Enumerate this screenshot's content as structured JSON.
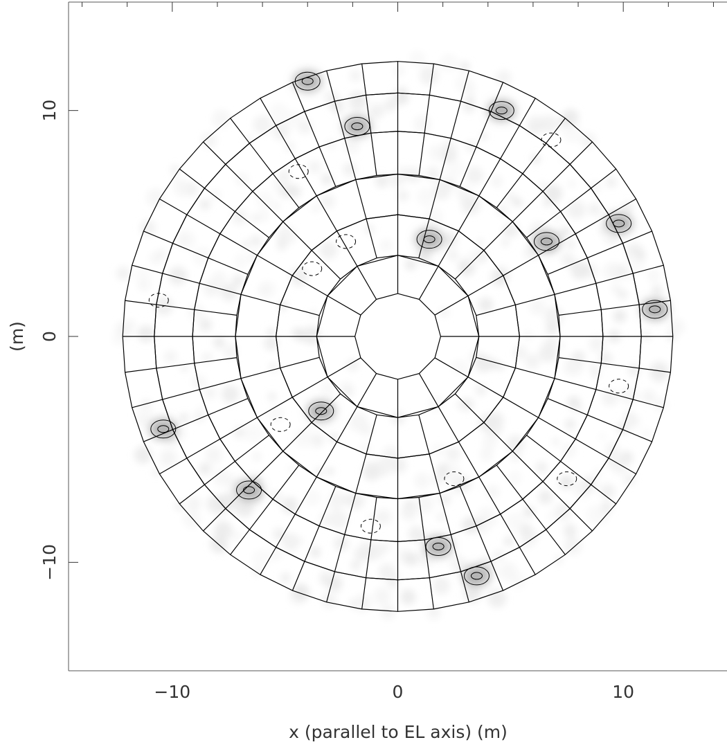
{
  "chart_data": {
    "type": "scatter",
    "title": "",
    "xlabel": "x (parallel to EL axis) (m)",
    "ylabel": "(m)",
    "xlim": [
      -14.6,
      14.6
    ],
    "ylim": [
      -14.8,
      14.8
    ],
    "x_ticks": [
      {
        "value": -10,
        "label": "−10"
      },
      {
        "value": 0,
        "label": "0"
      },
      {
        "value": 10,
        "label": "10"
      }
    ],
    "y_ticks": [
      {
        "value": -10,
        "label": "−10"
      },
      {
        "value": 0,
        "label": "0"
      },
      {
        "value": 10,
        "label": "10"
      }
    ],
    "grid": false,
    "legend": "none",
    "panel_rings": [
      {
        "r_inner": 1.9,
        "r_outer": 3.6,
        "sectors": 12
      },
      {
        "r_inner": 3.6,
        "r_outer": 5.4,
        "sectors": 24
      },
      {
        "r_inner": 5.4,
        "r_outer": 7.2,
        "sectors": 24
      },
      {
        "r_inner": 7.2,
        "r_outer": 9.1,
        "sectors": 48
      },
      {
        "r_inner": 9.1,
        "r_outer": 10.8,
        "sectors": 48
      },
      {
        "r_inner": 10.8,
        "r_outer": 12.2,
        "sectors": 48
      }
    ],
    "contour_features": [
      {
        "x": -4.0,
        "y": 11.3,
        "kind": "positive"
      },
      {
        "x": 4.6,
        "y": 10.0,
        "kind": "positive"
      },
      {
        "x": 9.8,
        "y": 5.0,
        "kind": "positive"
      },
      {
        "x": 11.4,
        "y": 1.2,
        "kind": "positive"
      },
      {
        "x": 1.4,
        "y": 4.3,
        "kind": "positive"
      },
      {
        "x": -1.8,
        "y": 9.3,
        "kind": "positive"
      },
      {
        "x": 6.6,
        "y": 4.2,
        "kind": "positive"
      },
      {
        "x": -10.4,
        "y": -4.1,
        "kind": "positive"
      },
      {
        "x": -3.4,
        "y": -3.3,
        "kind": "positive"
      },
      {
        "x": -6.6,
        "y": -6.8,
        "kind": "positive"
      },
      {
        "x": 1.8,
        "y": -9.3,
        "kind": "positive"
      },
      {
        "x": 3.5,
        "y": -10.6,
        "kind": "positive"
      },
      {
        "x": -4.4,
        "y": 7.3,
        "kind": "negative"
      },
      {
        "x": -3.8,
        "y": 3.0,
        "kind": "negative"
      },
      {
        "x": -5.2,
        "y": -3.9,
        "kind": "negative"
      },
      {
        "x": 2.5,
        "y": -6.3,
        "kind": "negative"
      },
      {
        "x": 9.8,
        "y": -2.2,
        "kind": "negative"
      },
      {
        "x": 6.8,
        "y": 8.7,
        "kind": "negative"
      },
      {
        "x": -10.6,
        "y": 1.6,
        "kind": "negative"
      },
      {
        "x": -2.3,
        "y": 4.2,
        "kind": "negative"
      },
      {
        "x": 7.5,
        "y": -6.3,
        "kind": "negative"
      },
      {
        "x": -1.2,
        "y": -8.4,
        "kind": "negative"
      }
    ]
  }
}
